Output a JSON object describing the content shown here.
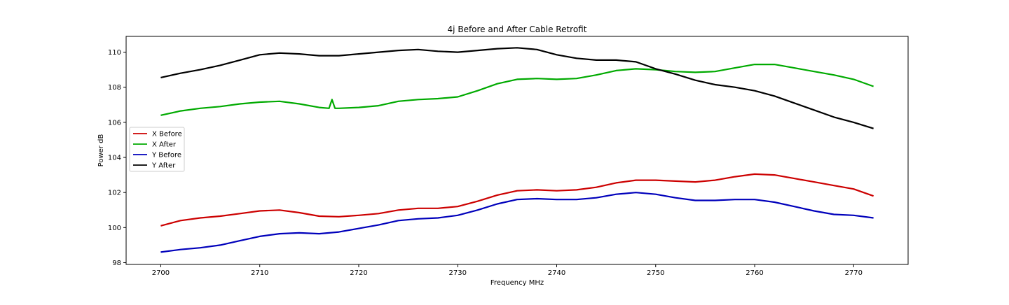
{
  "chart_data": {
    "type": "line",
    "title": "4j Before and After Cable Retrofit",
    "xlabel": "Frequency MHz",
    "ylabel": "Power dB",
    "xlim": [
      2696.5,
      2775.5
    ],
    "ylim": [
      97.9,
      110.9
    ],
    "xticks": [
      2700,
      2710,
      2720,
      2730,
      2740,
      2750,
      2760,
      2770
    ],
    "yticks": [
      98,
      100,
      102,
      104,
      106,
      108,
      110
    ],
    "grid": false,
    "legend_position": "center-left",
    "series": [
      {
        "name": "X Before",
        "color": "#cc0000",
        "x": [
          2700,
          2702,
          2704,
          2706,
          2708,
          2710,
          2712,
          2714,
          2716,
          2718,
          2720,
          2722,
          2724,
          2726,
          2728,
          2730,
          2732,
          2734,
          2736,
          2738,
          2740,
          2742,
          2744,
          2746,
          2748,
          2750,
          2752,
          2754,
          2756,
          2758,
          2760,
          2762,
          2764,
          2766,
          2768,
          2770,
          2772
        ],
        "y": [
          100.1,
          100.4,
          100.55,
          100.65,
          100.8,
          100.95,
          101.0,
          100.85,
          100.65,
          100.62,
          100.7,
          100.8,
          101.0,
          101.1,
          101.1,
          101.2,
          101.5,
          101.85,
          102.1,
          102.15,
          102.1,
          102.15,
          102.3,
          102.55,
          102.7,
          102.7,
          102.65,
          102.6,
          102.7,
          102.9,
          103.05,
          103.0,
          102.8,
          102.6,
          102.4,
          102.2,
          101.8
        ]
      },
      {
        "name": "X After",
        "color": "#00aa00",
        "x": [
          2700,
          2702,
          2704,
          2706,
          2708,
          2710,
          2712,
          2714,
          2716,
          2717,
          2717.3,
          2717.6,
          2718,
          2720,
          2722,
          2724,
          2726,
          2728,
          2730,
          2732,
          2734,
          2736,
          2738,
          2740,
          2742,
          2744,
          2746,
          2748,
          2750,
          2752,
          2754,
          2756,
          2758,
          2760,
          2762,
          2764,
          2766,
          2768,
          2770,
          2772
        ],
        "y": [
          106.4,
          106.65,
          106.8,
          106.9,
          107.05,
          107.15,
          107.2,
          107.05,
          106.85,
          106.8,
          107.3,
          106.8,
          106.8,
          106.85,
          106.95,
          107.2,
          107.3,
          107.35,
          107.45,
          107.8,
          108.2,
          108.45,
          108.5,
          108.45,
          108.5,
          108.7,
          108.95,
          109.05,
          109.0,
          108.9,
          108.85,
          108.9,
          109.1,
          109.3,
          109.3,
          109.1,
          108.9,
          108.7,
          108.45,
          108.05
        ]
      },
      {
        "name": "Y Before",
        "color": "#0000bb",
        "x": [
          2700,
          2702,
          2704,
          2706,
          2708,
          2710,
          2712,
          2714,
          2716,
          2718,
          2720,
          2722,
          2724,
          2726,
          2728,
          2730,
          2732,
          2734,
          2736,
          2738,
          2740,
          2742,
          2744,
          2746,
          2748,
          2750,
          2752,
          2754,
          2756,
          2758,
          2760,
          2762,
          2764,
          2766,
          2768,
          2770,
          2772
        ],
        "y": [
          98.6,
          98.75,
          98.85,
          99.0,
          99.25,
          99.5,
          99.65,
          99.7,
          99.65,
          99.75,
          99.95,
          100.15,
          100.4,
          100.5,
          100.55,
          100.7,
          101.0,
          101.35,
          101.6,
          101.65,
          101.6,
          101.6,
          101.7,
          101.9,
          102.0,
          101.9,
          101.7,
          101.55,
          101.55,
          101.6,
          101.6,
          101.45,
          101.2,
          100.95,
          100.75,
          100.7,
          100.55
        ]
      },
      {
        "name": "Y After",
        "color": "#000000",
        "x": [
          2700,
          2702,
          2704,
          2706,
          2708,
          2710,
          2712,
          2714,
          2716,
          2718,
          2720,
          2722,
          2724,
          2726,
          2728,
          2730,
          2732,
          2734,
          2736,
          2738,
          2740,
          2742,
          2744,
          2746,
          2748,
          2750,
          2752,
          2754,
          2756,
          2758,
          2760,
          2762,
          2764,
          2766,
          2768,
          2770,
          2772
        ],
        "y": [
          108.55,
          108.8,
          109.0,
          109.25,
          109.55,
          109.85,
          109.95,
          109.9,
          109.8,
          109.8,
          109.9,
          110.0,
          110.1,
          110.15,
          110.05,
          110.0,
          110.1,
          110.2,
          110.25,
          110.15,
          109.85,
          109.65,
          109.55,
          109.55,
          109.45,
          109.05,
          108.75,
          108.4,
          108.15,
          108.0,
          107.8,
          107.5,
          107.1,
          106.7,
          106.3,
          106.0,
          105.65
        ]
      }
    ]
  }
}
